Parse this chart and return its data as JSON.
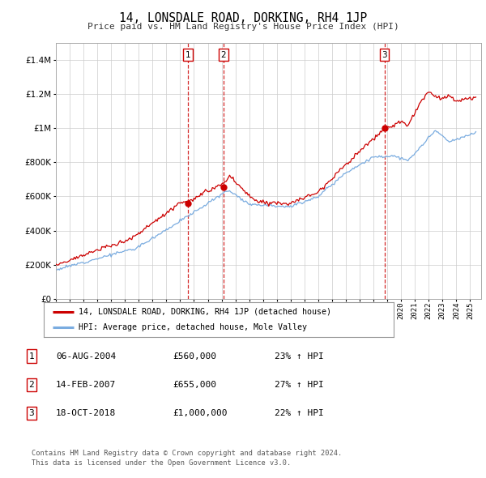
{
  "title": "14, LONSDALE ROAD, DORKING, RH4 1JP",
  "subtitle": "Price paid vs. HM Land Registry's House Price Index (HPI)",
  "legend_line1": "14, LONSDALE ROAD, DORKING, RH4 1JP (detached house)",
  "legend_line2": "HPI: Average price, detached house, Mole Valley",
  "table": [
    [
      "1",
      "06-AUG-2004",
      "£560,000",
      "23% ↑ HPI"
    ],
    [
      "2",
      "14-FEB-2007",
      "£655,000",
      "27% ↑ HPI"
    ],
    [
      "3",
      "18-OCT-2018",
      "£1,000,000",
      "22% ↑ HPI"
    ]
  ],
  "footer1": "Contains HM Land Registry data © Crown copyright and database right 2024.",
  "footer2": "This data is licensed under the Open Government Licence v3.0.",
  "red_color": "#cc0000",
  "blue_color": "#7aace0",
  "background_color": "#ffffff",
  "grid_color": "#cccccc",
  "ylim": [
    0,
    1500000
  ],
  "yticks": [
    0,
    200000,
    400000,
    600000,
    800000,
    1000000,
    1200000,
    1400000
  ],
  "xlim_start": 1995.0,
  "xlim_end": 2025.8,
  "sale_times": [
    2004.586,
    2007.12,
    2018.79
  ],
  "sale_prices": [
    560000,
    655000,
    1000000
  ]
}
